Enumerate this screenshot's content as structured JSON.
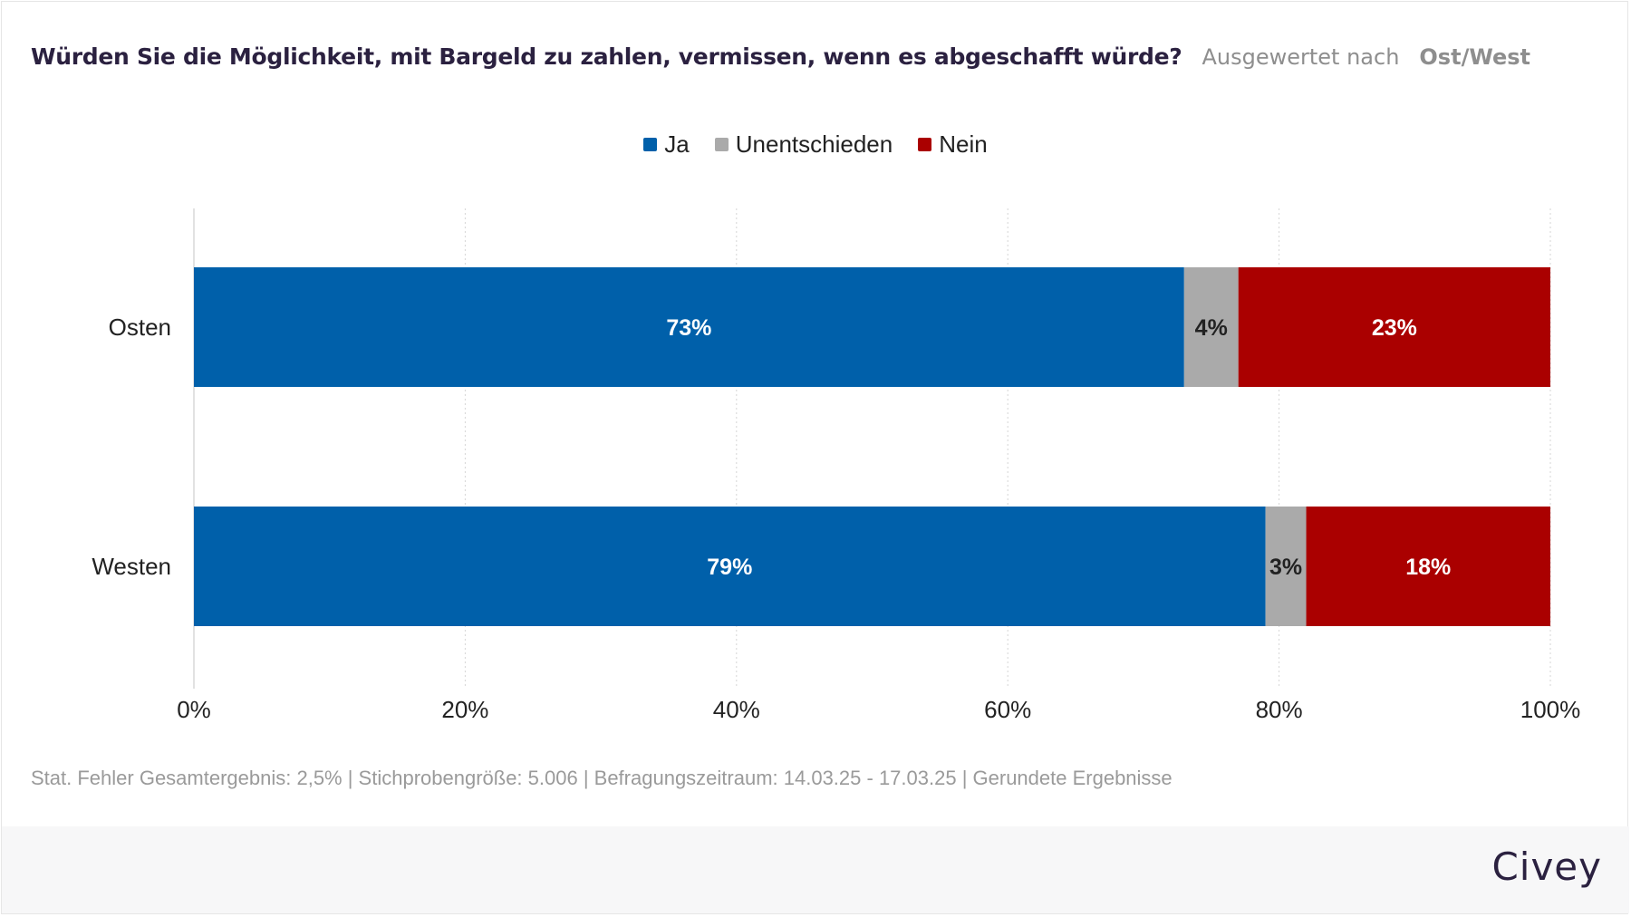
{
  "header": {
    "question": "Würden Sie die Möglichkeit, mit Bargeld zu zahlen, vermissen, wenn es abgeschafft würde?",
    "eval_label": "Ausgewertet nach",
    "eval_value": "Ost/West"
  },
  "colors": {
    "ja": "#0060aa",
    "unentschieden": "#aaaaaa",
    "nein": "#aa0000",
    "grid": "#d6d6d6"
  },
  "chart_data": {
    "type": "bar",
    "orientation": "horizontal",
    "stacked": true,
    "categories": [
      "Osten",
      "Westen"
    ],
    "series": [
      {
        "name": "Ja",
        "values": [
          73,
          79
        ],
        "labels": [
          "73%",
          "79%"
        ]
      },
      {
        "name": "Unentschieden",
        "values": [
          4,
          3
        ],
        "labels": [
          "4%",
          "3%"
        ]
      },
      {
        "name": "Nein",
        "values": [
          23,
          18
        ],
        "labels": [
          "23%",
          "18%"
        ]
      }
    ],
    "xlim": [
      0,
      100
    ],
    "xticks": [
      0,
      20,
      40,
      60,
      80,
      100
    ],
    "xtick_labels": [
      "0%",
      "20%",
      "40%",
      "60%",
      "80%",
      "100%"
    ],
    "grid": true,
    "legend_position": "top-center"
  },
  "footer": {
    "note": "Stat. Fehler Gesamtergebnis: 2,5% | Stichprobengröße: 5.006 | Befragungszeitraum: 14.03.25 - 17.03.25 | Gerundete Ergebnisse",
    "brand": "Civey"
  }
}
